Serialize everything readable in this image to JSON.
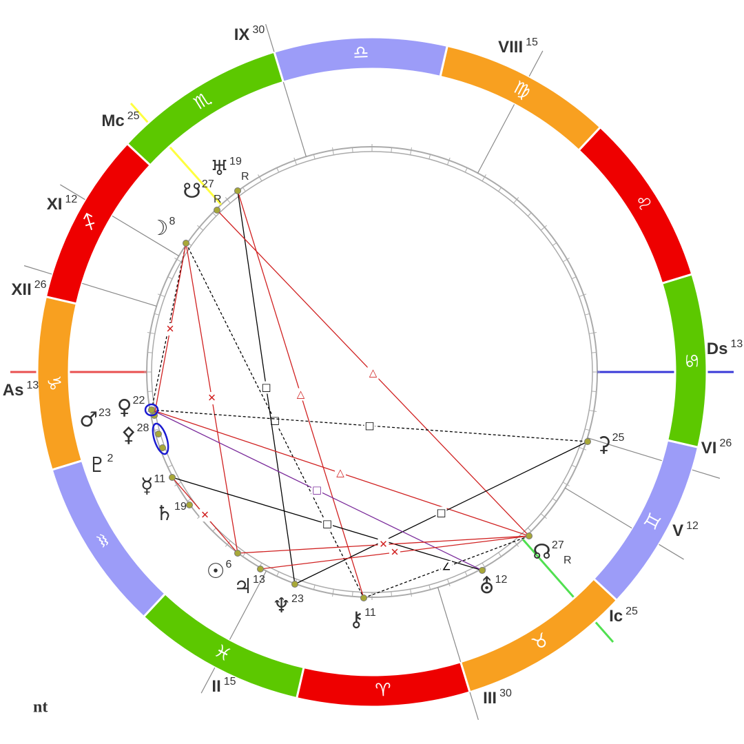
{
  "zodiac": [
    "♈︎",
    "♉︎",
    "♊︎",
    "♋︎",
    "♌︎",
    "♍︎",
    "♎︎",
    "♏︎",
    "♐︎",
    "♑︎",
    "♒︎",
    "♓︎"
  ],
  "houses": [
    {
      "label": "As",
      "degree": "13"
    },
    {
      "label": "XII",
      "degree": "26"
    },
    {
      "label": "XI",
      "degree": "12"
    },
    {
      "label": "Mc",
      "degree": "25"
    },
    {
      "label": "IX",
      "degree": "30"
    },
    {
      "label": "VIII",
      "degree": "15"
    },
    {
      "label": "Ds",
      "degree": "13"
    },
    {
      "label": "VI",
      "degree": "26"
    },
    {
      "label": "V",
      "degree": "12"
    },
    {
      "label": "Ic",
      "degree": "25"
    },
    {
      "label": "III",
      "degree": "30"
    },
    {
      "label": "II",
      "degree": "15"
    }
  ],
  "planets": [
    {
      "glyph": "♅",
      "degree": "19",
      "retrograde": "R"
    },
    {
      "glyph": "☋",
      "degree": "27",
      "retrograde": "R"
    },
    {
      "glyph": "☽",
      "degree": "8"
    },
    {
      "glyph": "♀",
      "degree": "22"
    },
    {
      "glyph": "♂",
      "degree": "23"
    },
    {
      "glyph": "⚴",
      "degree": "28"
    },
    {
      "glyph": "♇",
      "degree": "2"
    },
    {
      "glyph": "☿",
      "degree": "11"
    },
    {
      "glyph": "♄",
      "degree": "19"
    },
    {
      "glyph": "☉",
      "degree": "6"
    },
    {
      "glyph": "♃",
      "degree": "13"
    },
    {
      "glyph": "♆",
      "degree": "23"
    },
    {
      "glyph": "⚷",
      "degree": "11"
    },
    {
      "glyph": "⛢",
      "degree": "12"
    },
    {
      "glyph": "☊",
      "degree": "27",
      "retrograde": "R"
    },
    {
      "glyph": "⚳",
      "degree": "25"
    }
  ],
  "aspects": [
    {
      "symbol": "□"
    },
    {
      "symbol": "✕"
    },
    {
      "symbol": "□"
    },
    {
      "symbol": "△"
    },
    {
      "symbol": "△"
    },
    {
      "symbol": "□"
    },
    {
      "symbol": "△"
    },
    {
      "symbol": "□"
    },
    {
      "symbol": "□"
    },
    {
      "symbol": "□"
    },
    {
      "symbol": "✕"
    },
    {
      "symbol": "✕"
    },
    {
      "symbol": "∠"
    },
    {
      "symbol": "∠"
    },
    {
      "symbol": "✕"
    },
    {
      "symbol": "✕"
    }
  ],
  "footer": "nt"
}
